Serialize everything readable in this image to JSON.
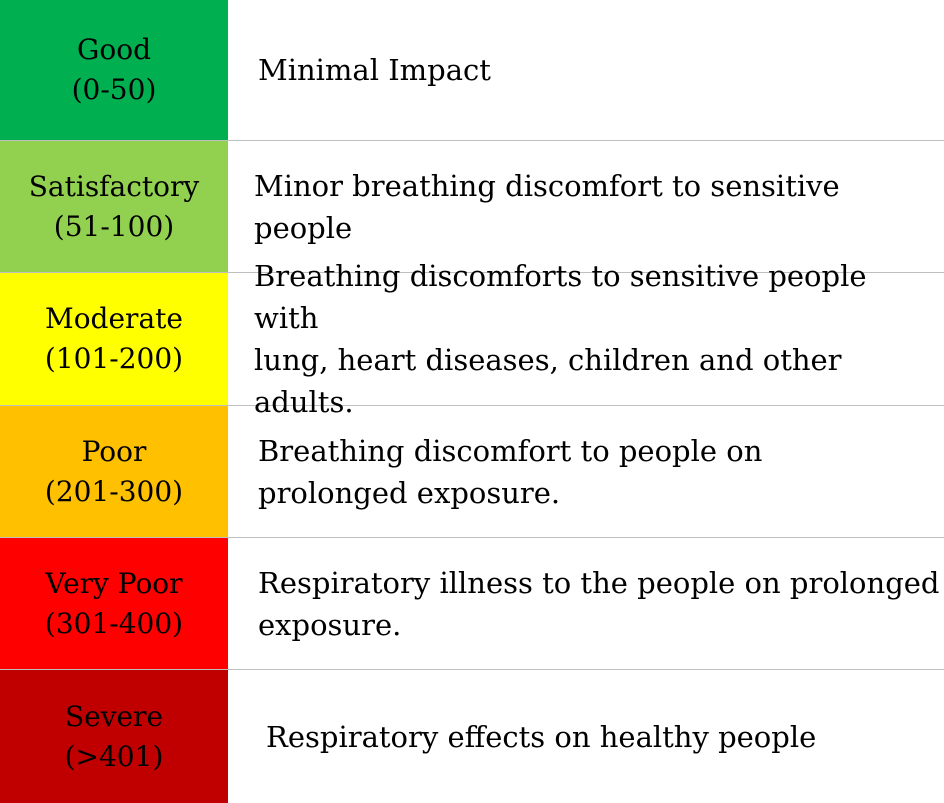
{
  "rows": [
    {
      "name": "Good",
      "range": "(0-50)",
      "color": "#00b050",
      "impact": "Minimal Impact"
    },
    {
      "name": "Satisfactory",
      "range": "(51-100)",
      "color": "#92d050",
      "impact": "Minor breathing discomfort to sensitive people"
    },
    {
      "name": "Moderate",
      "range": "(101-200)",
      "color": "#ffff00",
      "impact": "Breathing discomforts to sensitive people with\nlung, heart diseases, children and other adults."
    },
    {
      "name": "Poor",
      "range": "(201-300)",
      "color": "#ffc000",
      "impact": "Breathing discomfort to people on\nprolonged exposure."
    },
    {
      "name": "Very Poor",
      "range": "(301-400)",
      "color": "#ff0000",
      "impact": "Respiratory illness to the people on prolonged\nexposure."
    },
    {
      "name": "Severe",
      "range": "(>401)",
      "color": "#c00000",
      "impact": "Respiratory effects on healthy people"
    }
  ]
}
